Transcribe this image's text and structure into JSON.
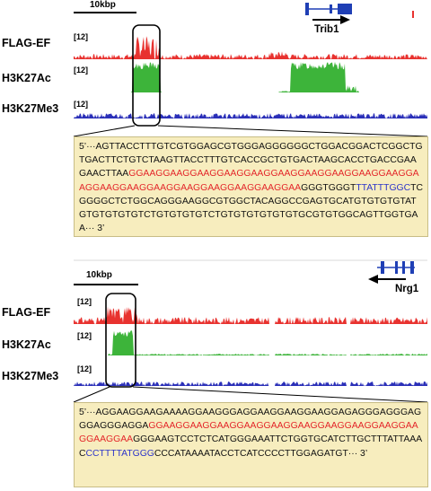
{
  "colors": {
    "flag": "#e8322f",
    "h3k27ac": "#3db43a",
    "h3k27me3": "#2a2fb8",
    "seq_box_bg": "#f7edbe"
  },
  "panels": [
    {
      "scale_bar": "10kbp",
      "gene": "Trib1",
      "gene_direction": "right",
      "tracks": [
        {
          "label": "FLAG-EF",
          "scale": "[12]"
        },
        {
          "label": "H3K27Ac",
          "scale": "[12]"
        },
        {
          "label": "H3K27Me3",
          "scale": "[12]"
        }
      ],
      "sequence": [
        {
          "text": "5’···AGTTACCTTTGTCGTGGAGCGTGGGAGGGGGGCTGGACGGACTCGGCTGTGACTTCTGTCTAAGTTACCTTTGTCACCGCTGTGACTAAGCACCTGACCGAAGAACTTAA",
          "color": "black"
        },
        {
          "text": "GGAAGGAAGGAAGGAAGGAAGGAAGGAAGGAAGGAAGGAAGGAAGGAAGGAAGGAAGGAAGGAAGGAAGGAAGGAA",
          "color": "red"
        },
        {
          "text": "GGGTGGGT",
          "color": "black"
        },
        {
          "text": "TTATTTGGC",
          "color": "blue"
        },
        {
          "text": "TCGGGGCTCTGGCAGGGAAGGCGTGGCTACAGGCCGAGTGCATGTGTGTGTATGTGTGTGTGTCTGTGTGTGTCTGTGTGTGTGTGTGCGTGTGGCAGTTGGTGAA··· 3’",
          "color": "black"
        }
      ]
    },
    {
      "scale_bar": "10kbp",
      "gene": "Nrg1",
      "gene_direction": "left",
      "tracks": [
        {
          "label": "FLAG-EF",
          "scale": "[12]"
        },
        {
          "label": "H3K27Ac",
          "scale": "[12]"
        },
        {
          "label": "H3K27Me3",
          "scale": "[12]"
        }
      ],
      "sequence": [
        {
          "text": "5’···AGGAAGGAAGAAAAGGAAGGGAGGAAGGAAGGAAGGAGAGGGAGGGAGGGAGGGAGGA",
          "color": "black"
        },
        {
          "text": "GGAAGGAAGGAAGGAAGGAAGGAAGGAAGGAAGGAAGGAAGGAAGGAA",
          "color": "red"
        },
        {
          "text": "GGGAAGTCCTCTCATGGGAAATTCTGGTGCATCTTGCTTTATTAAAC",
          "color": "black"
        },
        {
          "text": "CCTTTTATGGG",
          "color": "blue"
        },
        {
          "text": "CCCATAAAATACCTCATCCCCTTGGAGATGT··· 3’",
          "color": "black"
        }
      ]
    }
  ]
}
